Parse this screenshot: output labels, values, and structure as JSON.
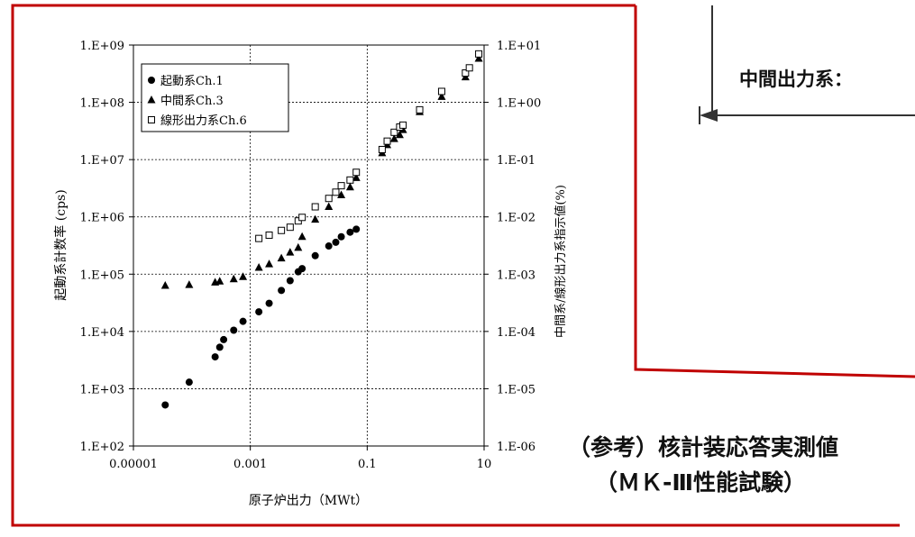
{
  "colors": {
    "frame": "#c00000",
    "axis": "#000000",
    "grid": "#000000",
    "marker": "#000000",
    "arrow": "#333333"
  },
  "side": {
    "intermediate_label": "中間出力系：",
    "reference_line1": "（参考）核計装応答実測値",
    "reference_line2": "（ＭＫ-Ⅲ性能試験）"
  },
  "chart_data": {
    "type": "scatter",
    "xscale": "log",
    "yscale": "log",
    "y2scale": "log",
    "xlabel": "原子炉出力（MWt）",
    "ylabel": "起動系計数率 (cps)",
    "y2label": "中間系/線形出力系指示値(%)",
    "xlim": [
      1e-05,
      10
    ],
    "ylim": [
      100,
      1000000000
    ],
    "y2lim": [
      1e-06,
      10
    ],
    "xticks": [
      "0.00001",
      "0.001",
      "0.1",
      "10"
    ],
    "yticks": [
      "1.E+02",
      "1.E+03",
      "1.E+04",
      "1.E+05",
      "1.E+06",
      "1.E+07",
      "1.E+08",
      "1.E+09"
    ],
    "y2ticks": [
      "1.E-06",
      "1.E-05",
      "1.E-04",
      "1.E-03",
      "1.E-02",
      "1.E-01",
      "1.E+00",
      "1.E+01"
    ],
    "grid": true,
    "legend_position": "top-left",
    "series": [
      {
        "name": "起動系Ch.1",
        "marker": "filled-circle",
        "axis": "left",
        "x": [
          3.5e-05,
          9e-05,
          0.00025,
          0.0003,
          0.00035,
          0.00052,
          0.00075,
          0.0014,
          0.0021,
          0.0034,
          0.0048,
          0.0066,
          0.0077,
          0.0129,
          0.022,
          0.029,
          0.036,
          0.051,
          0.065
        ],
        "y": [
          520,
          1300,
          3600,
          5300,
          7200,
          10500,
          15000,
          22000,
          31000,
          52000,
          77000,
          110000,
          125000,
          210000,
          310000,
          360000,
          450000,
          540000,
          610000
        ]
      },
      {
        "name": "中間系Ch.3",
        "marker": "filled-triangle",
        "axis": "right",
        "x": [
          3.5e-05,
          9e-05,
          0.00025,
          0.0003,
          0.00052,
          0.00075,
          0.0014,
          0.0021,
          0.0034,
          0.0048,
          0.0066,
          0.0077,
          0.0129,
          0.022,
          0.036,
          0.051,
          0.065,
          0.18,
          0.22,
          0.29,
          0.36,
          0.41,
          0.79,
          1.88,
          4.8,
          8.1
        ],
        "y": [
          0.00063,
          0.00065,
          0.00072,
          0.00075,
          0.00082,
          0.0009,
          0.0013,
          0.0015,
          0.0019,
          0.0024,
          0.0029,
          0.0045,
          0.009,
          0.015,
          0.024,
          0.033,
          0.048,
          0.13,
          0.18,
          0.23,
          0.27,
          0.33,
          0.68,
          1.25,
          2.75,
          5.8
        ]
      },
      {
        "name": "線形出力系Ch.6",
        "marker": "open-square",
        "axis": "right",
        "x": [
          0.0014,
          0.0021,
          0.0034,
          0.0048,
          0.0066,
          0.0077,
          0.0129,
          0.022,
          0.029,
          0.036,
          0.051,
          0.065,
          0.18,
          0.22,
          0.29,
          0.36,
          0.41,
          0.79,
          1.88,
          4.8,
          5.6,
          8.1
        ],
        "y": [
          0.0042,
          0.0048,
          0.0058,
          0.0066,
          0.0085,
          0.0098,
          0.015,
          0.021,
          0.027,
          0.035,
          0.044,
          0.06,
          0.15,
          0.21,
          0.3,
          0.37,
          0.4,
          0.74,
          1.55,
          3.25,
          4.0,
          7.0
        ]
      }
    ]
  }
}
